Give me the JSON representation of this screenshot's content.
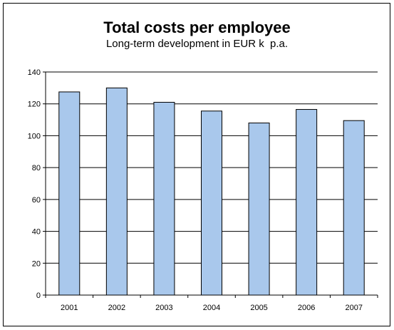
{
  "chart_data": {
    "type": "bar",
    "title": "Total costs per employee",
    "subtitle": "Long-term development in EUR k  p.a.",
    "categories": [
      "2001",
      "2002",
      "2003",
      "2004",
      "2005",
      "2006",
      "2007"
    ],
    "values": [
      127.5,
      130,
      121,
      115.5,
      108,
      116.5,
      109.5
    ],
    "xlabel": "",
    "ylabel": "",
    "ylim": [
      0,
      140
    ],
    "yticks": [
      0,
      20,
      40,
      60,
      80,
      100,
      120,
      140
    ],
    "grid": true,
    "legend": "none",
    "bar_color": "#a9c8ec",
    "bar_edge_color": "#000000"
  }
}
